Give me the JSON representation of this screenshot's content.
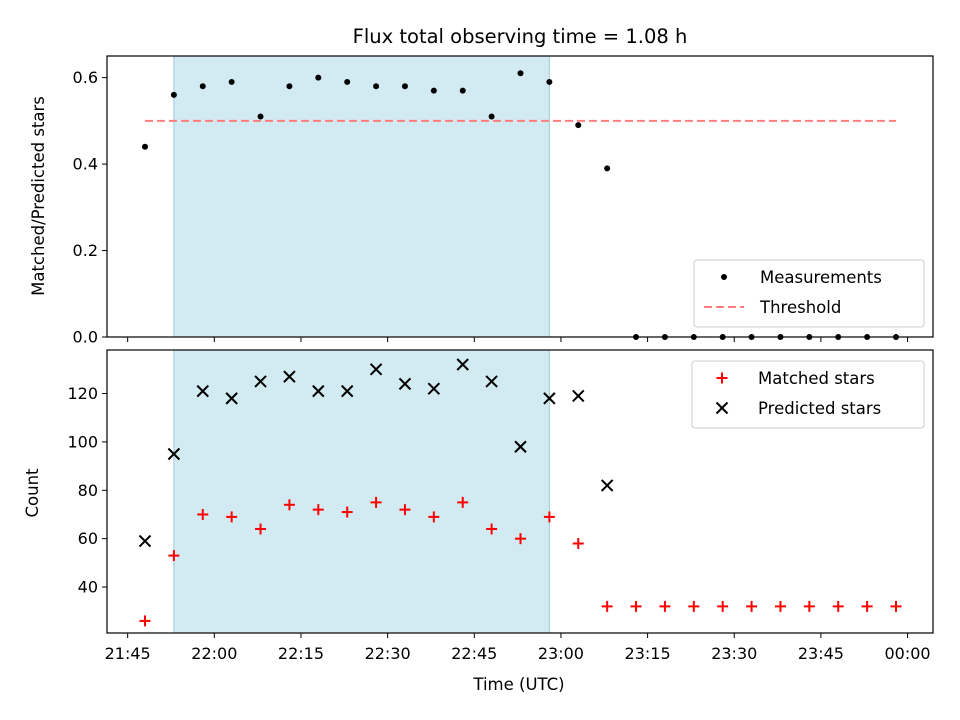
{
  "chart_data": [
    {
      "type": "scatter",
      "title": "Flux total observing time = 1.08 h",
      "ylabel": "Matched/Predicted stars",
      "xlabel": "",
      "ylim": [
        0,
        0.65
      ],
      "yticks": [
        0.0,
        0.2,
        0.4,
        0.6
      ],
      "ytick_labels": [
        "0.0",
        "0.2",
        "0.4",
        "0.6"
      ],
      "grid": false,
      "legend": "bottom-right",
      "shaded_interval": [
        "21:53",
        "22:58"
      ],
      "shaded_color": "#add8e6",
      "series": [
        {
          "name": "Measurements",
          "marker": "dot",
          "color": "#000000",
          "x": [
            "21:48",
            "21:53",
            "21:58",
            "22:03",
            "22:08",
            "22:13",
            "22:18",
            "22:23",
            "22:28",
            "22:33",
            "22:38",
            "22:43",
            "22:48",
            "22:53",
            "22:58",
            "23:03",
            "23:08",
            "23:13",
            "23:18",
            "23:23",
            "23:28",
            "23:33",
            "23:38",
            "23:43",
            "23:48",
            "23:53",
            "23:58"
          ],
          "y": [
            0.44,
            0.56,
            0.58,
            0.59,
            0.51,
            0.58,
            0.6,
            0.59,
            0.58,
            0.58,
            0.57,
            0.57,
            0.51,
            0.61,
            0.59,
            0.49,
            0.39,
            0.0,
            0.0,
            0.0,
            0.0,
            0.0,
            0.0,
            0.0,
            0.0,
            0.0,
            0.0
          ]
        },
        {
          "name": "Threshold",
          "style": "dashed-line",
          "color": "#ff7f7f",
          "x": [
            "21:48",
            "23:58"
          ],
          "y": [
            0.5,
            0.5
          ]
        }
      ]
    },
    {
      "type": "scatter",
      "xlabel": "Time (UTC)",
      "ylabel": "Count",
      "ylim": [
        21,
        138
      ],
      "yticks": [
        40,
        60,
        80,
        100,
        120
      ],
      "ytick_labels": [
        "40",
        "60",
        "80",
        "100",
        "120"
      ],
      "xticks": [
        "21:45",
        "22:00",
        "22:15",
        "22:30",
        "22:45",
        "23:00",
        "23:15",
        "23:30",
        "23:45",
        "00:00"
      ],
      "grid": false,
      "legend": "top-right",
      "shaded_interval": [
        "21:53",
        "22:58"
      ],
      "shaded_color": "#add8e6",
      "series": [
        {
          "name": "Matched stars",
          "marker": "plus",
          "color": "#ff0000",
          "x": [
            "21:48",
            "21:53",
            "21:58",
            "22:03",
            "22:08",
            "22:13",
            "22:18",
            "22:23",
            "22:28",
            "22:33",
            "22:38",
            "22:43",
            "22:48",
            "22:53",
            "22:58",
            "23:03",
            "23:08",
            "23:13",
            "23:18",
            "23:23",
            "23:28",
            "23:33",
            "23:38",
            "23:43",
            "23:48",
            "23:53",
            "23:58"
          ],
          "y": [
            26,
            53,
            70,
            69,
            64,
            74,
            72,
            71,
            75,
            72,
            69,
            75,
            64,
            60,
            69,
            58,
            32,
            32,
            32,
            32,
            32,
            32,
            32,
            32,
            32,
            32,
            32
          ]
        },
        {
          "name": "Predicted stars",
          "marker": "x",
          "color": "#000000",
          "x": [
            "21:48",
            "21:53",
            "21:58",
            "22:03",
            "22:08",
            "22:13",
            "22:18",
            "22:23",
            "22:28",
            "22:33",
            "22:38",
            "22:43",
            "22:48",
            "22:53",
            "22:58",
            "23:03",
            "23:08"
          ],
          "y": [
            59,
            95,
            121,
            118,
            125,
            127,
            121,
            121,
            130,
            124,
            122,
            132,
            125,
            98,
            118,
            119,
            82
          ]
        }
      ]
    }
  ]
}
